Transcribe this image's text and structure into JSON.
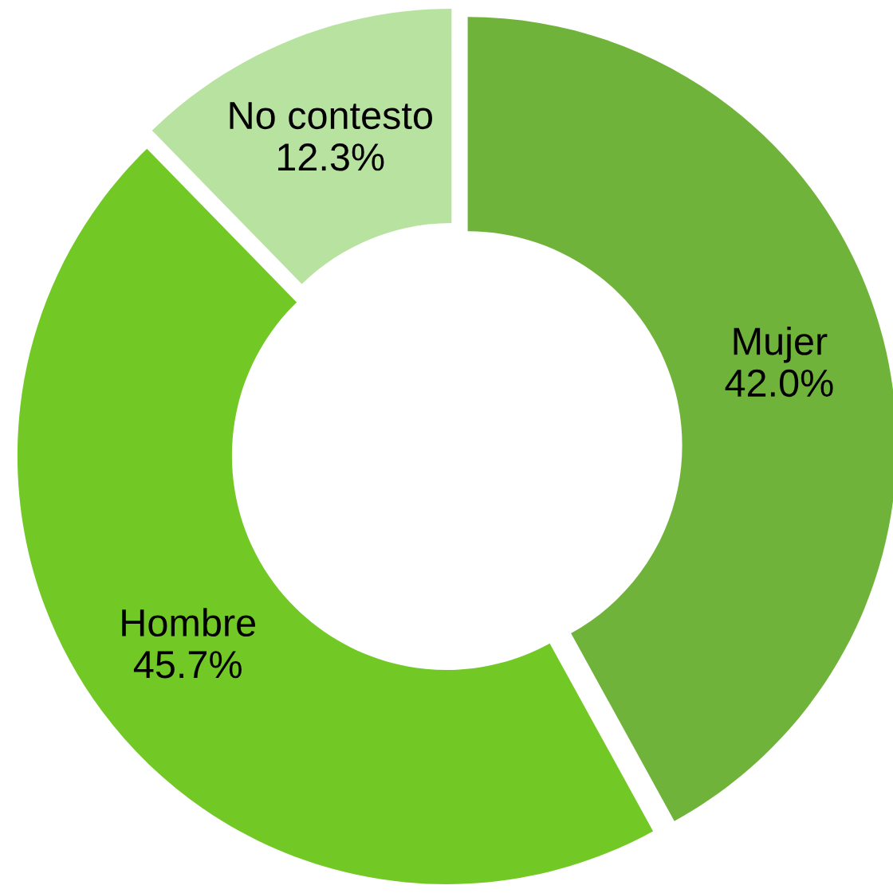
{
  "chart_data": {
    "type": "donut",
    "categories": [
      "Mujer",
      "Hombre",
      "No contesto"
    ],
    "values": [
      42.0,
      45.7,
      12.3
    ],
    "value_labels": [
      "42.0%",
      "45.7%",
      "12.3%"
    ],
    "colors": [
      "#70b33a",
      "#72c825",
      "#b8e2a0"
    ]
  }
}
